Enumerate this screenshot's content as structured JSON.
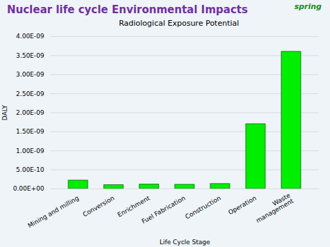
{
  "chart_data": {
    "type": "bar",
    "title": "Nuclear life cycle Environmental Impacts",
    "subtitle": "Radiological Exposure Potential",
    "annotation": "spring",
    "xlabel": "Life Cycle Stage",
    "ylabel": "DALY",
    "categories": [
      "Mining and milling",
      "Conversion",
      "Enrichment",
      "Fuel Fabrication",
      "Construction",
      "Operation",
      "Waste\nmanagement"
    ],
    "values": [
      2.2e-10,
      1e-10,
      1.15e-10,
      1.1e-10,
      1.3e-10,
      1.7e-09,
      3.6e-09
    ],
    "color": "#00EE00",
    "ylim": [
      0,
      4e-09
    ],
    "yticks": [
      {
        "value": 0,
        "label": "0.00E+00"
      },
      {
        "value": 5e-10,
        "label": "5.00E-10"
      },
      {
        "value": 1e-09,
        "label": "1.00E-09"
      },
      {
        "value": 1.5e-09,
        "label": "1.50E-09"
      },
      {
        "value": 2e-09,
        "label": "2.00E-09"
      },
      {
        "value": 2.5e-09,
        "label": "2.50E-09"
      },
      {
        "value": 3e-09,
        "label": "3.00E-09"
      },
      {
        "value": 3.5e-09,
        "label": "3.50E-09"
      },
      {
        "value": 4e-09,
        "label": "4.00E-09"
      }
    ],
    "grid": true
  }
}
